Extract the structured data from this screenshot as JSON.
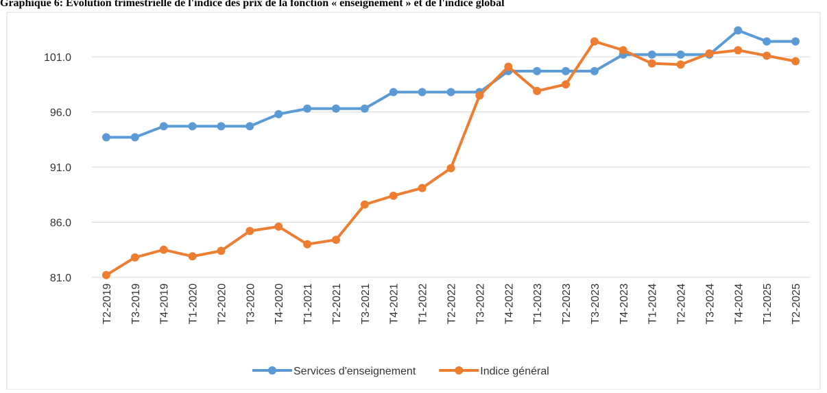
{
  "chart_data": {
    "type": "line",
    "title": "Graphique 6: Evolution trimestrielle de l'indice des prix de la fonction « enseignement » et de l'indice global",
    "categories": [
      "T2-2019",
      "T3-2019",
      "T4-2019",
      "T1-2020",
      "T2-2020",
      "T3-2020",
      "T4-2020",
      "T1-2021",
      "T2-2021",
      "T3-2021",
      "T4-2021",
      "T1-2022",
      "T2-2022",
      "T3-2022",
      "T4-2022",
      "T1-2023",
      "T2-2023",
      "T3-2023",
      "T4-2023",
      "T1-2024",
      "T2-2024",
      "T3-2024",
      "T4-2024",
      "T1-2025",
      "T2-2025"
    ],
    "series": [
      {
        "name": "Services d'enseignement",
        "color": "#5b9bd5",
        "values": [
          93.7,
          93.7,
          94.7,
          94.7,
          94.7,
          94.7,
          95.8,
          96.3,
          96.3,
          96.3,
          97.8,
          97.8,
          97.8,
          97.8,
          99.7,
          99.7,
          99.7,
          99.7,
          101.2,
          101.2,
          101.2,
          101.2,
          103.4,
          102.4,
          102.4
        ]
      },
      {
        "name": "Indice général",
        "color": "#ed7d31",
        "values": [
          81.2,
          82.8,
          83.5,
          82.9,
          83.4,
          85.2,
          85.6,
          84.0,
          84.4,
          87.6,
          88.4,
          89.1,
          90.9,
          97.5,
          100.1,
          97.9,
          98.5,
          102.4,
          101.6,
          100.4,
          100.3,
          101.3,
          101.6,
          101.1,
          100.6
        ]
      }
    ],
    "ylim": [
      81,
      105
    ],
    "yticks": [
      {
        "value": 81,
        "label": "81.0"
      },
      {
        "value": 86,
        "label": "86.0"
      },
      {
        "value": 91,
        "label": "91.0"
      },
      {
        "value": 96,
        "label": "96.0"
      },
      {
        "value": 101,
        "label": "101.0"
      }
    ],
    "grid": true,
    "legend": "bottom"
  }
}
